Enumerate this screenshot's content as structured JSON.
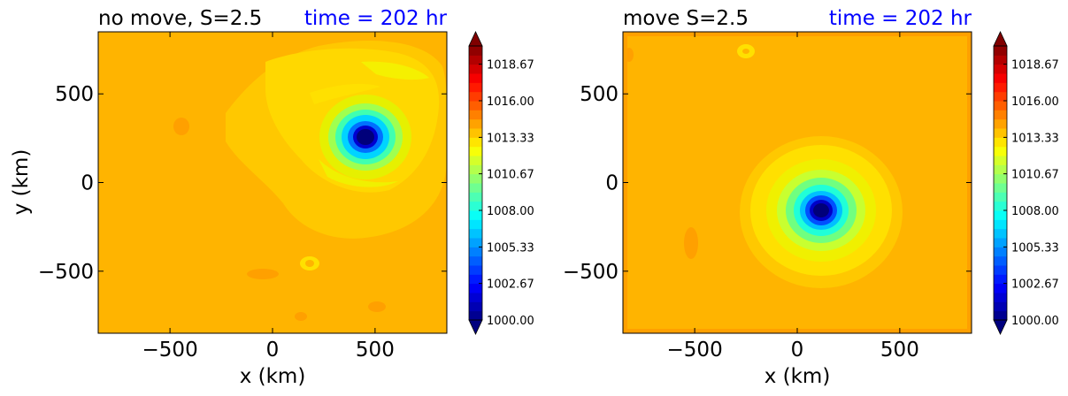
{
  "colors": {
    "title_black": "#000000",
    "title_blue": "#0000ff",
    "background_fill": "#ffb400"
  },
  "chart_data": [
    {
      "type": "heatmap",
      "title": "no move, S=2.5",
      "title_right": "time = 202 hr",
      "xlabel": "x (km)",
      "ylabel": "y (km)",
      "xlim": [
        -850,
        850
      ],
      "ylim": [
        -850,
        850
      ],
      "xticks": [
        -500,
        0,
        500
      ],
      "yticks": [
        -500,
        0,
        500
      ],
      "xtick_labels": [
        "−500",
        "0",
        "500"
      ],
      "ytick_labels": [
        "−500",
        "0",
        "500"
      ],
      "vortex_center": [
        450,
        255
      ],
      "colorbar": {
        "vmin": 1000.0,
        "vmax": 1020.0,
        "tick_values": [
          1000.0,
          1002.67,
          1005.33,
          1008.0,
          1010.67,
          1013.33,
          1016.0,
          1018.67
        ],
        "tick_labels": [
          "1000.00",
          "1002.67",
          "1005.33",
          "1008.00",
          "1010.67",
          "1013.33",
          "1016.00",
          "1018.67"
        ],
        "extend": "both"
      }
    },
    {
      "type": "heatmap",
      "title": "move S=2.5",
      "title_right": "time = 202 hr",
      "xlabel": "x (km)",
      "ylabel": "",
      "xlim": [
        -850,
        850
      ],
      "ylim": [
        -850,
        850
      ],
      "xticks": [
        -500,
        0,
        500
      ],
      "yticks": [
        -500,
        0,
        500
      ],
      "xtick_labels": [
        "−500",
        "0",
        "500"
      ],
      "ytick_labels": [
        "−500",
        "0",
        "500"
      ],
      "vortex_center": [
        120,
        -160
      ],
      "colorbar": {
        "vmin": 1000.0,
        "vmax": 1020.0,
        "tick_values": [
          1000.0,
          1002.67,
          1005.33,
          1008.0,
          1010.67,
          1013.33,
          1016.0,
          1018.67
        ],
        "tick_labels": [
          "1000.00",
          "1002.67",
          "1005.33",
          "1008.00",
          "1010.67",
          "1013.33",
          "1016.00",
          "1018.67"
        ],
        "extend": "both"
      }
    }
  ]
}
